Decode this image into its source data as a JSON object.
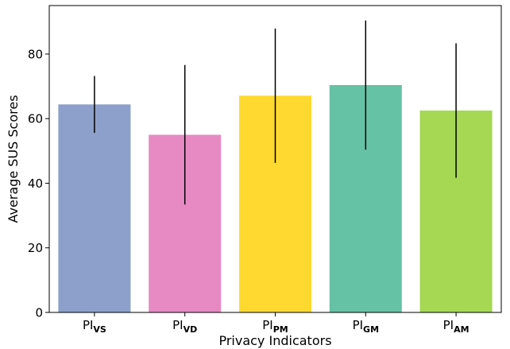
{
  "chart_data": {
    "type": "bar",
    "title": "",
    "xlabel": "Privacy Indicators",
    "ylabel": "Average SUS Scores",
    "categories": [
      {
        "base": "PI",
        "sub": "VS"
      },
      {
        "base": "PI",
        "sub": "VD"
      },
      {
        "base": "PI",
        "sub": "PM"
      },
      {
        "base": "PI",
        "sub": "GM"
      },
      {
        "base": "PI",
        "sub": "AM"
      }
    ],
    "values": [
      64.4,
      55.0,
      67.1,
      70.4,
      62.5
    ],
    "errors": [
      8.8,
      21.6,
      20.8,
      20.0,
      20.8
    ],
    "colors": [
      "#8da0cb",
      "#e78ac3",
      "#ffd92f",
      "#66c2a5",
      "#a6d854"
    ],
    "ylim": [
      0,
      95
    ],
    "yticks": [
      0,
      20,
      40,
      60,
      80
    ],
    "grid": false,
    "legend": null
  }
}
